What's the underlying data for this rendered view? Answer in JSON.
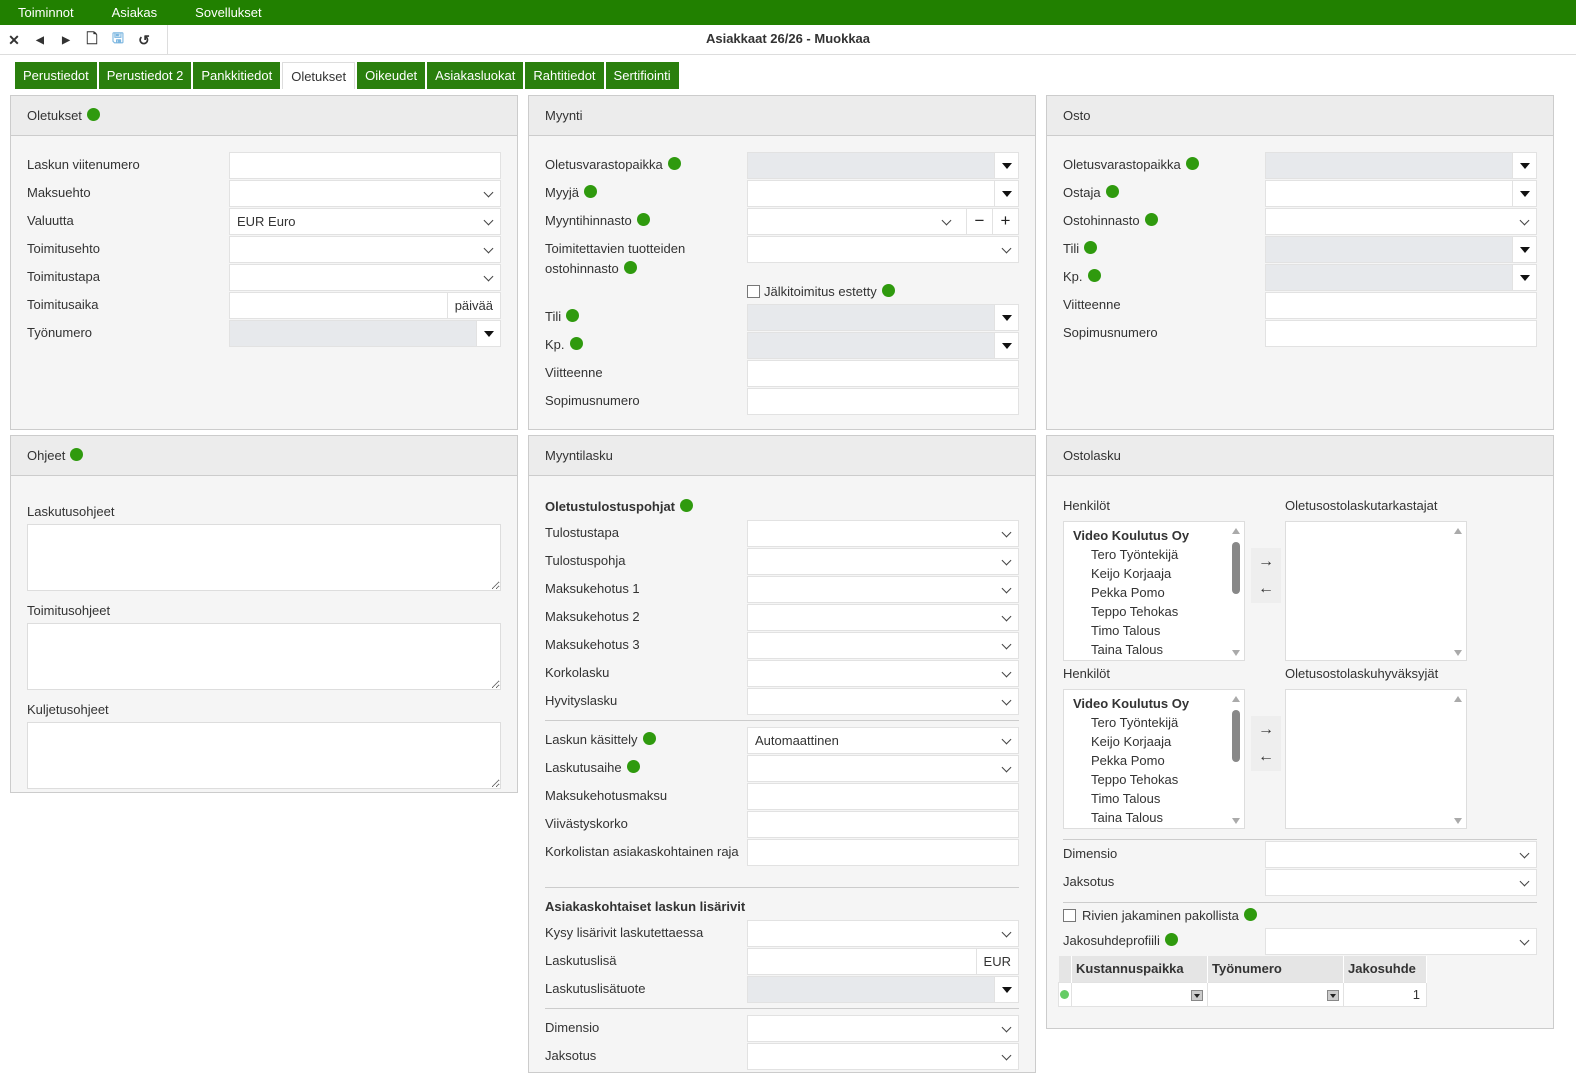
{
  "menu": [
    "Toiminnot",
    "Asiakas",
    "Sovellukset"
  ],
  "window_title": "Asiakkaat 26/26 - Muokkaa",
  "tabs": [
    "Perustiedot",
    "Perustiedot 2",
    "Pankkitiedot",
    "Oletukset",
    "Oikeudet",
    "Asiakasluokat",
    "Rahtitiedot",
    "Sertifiointi"
  ],
  "active_tab": "Oletukset",
  "panels": {
    "oletukset": {
      "title": "Oletukset",
      "info": true,
      "fields": [
        {
          "label": "Laskun viitenumero",
          "type": "text",
          "value": ""
        },
        {
          "label": "Maksuehto",
          "type": "select",
          "value": ""
        },
        {
          "label": "Valuutta",
          "type": "select",
          "value": "EUR Euro"
        },
        {
          "label": "Toimitusehto",
          "type": "select",
          "value": ""
        },
        {
          "label": "Toimitustapa",
          "type": "select",
          "value": ""
        },
        {
          "label": "Toimitusaika",
          "type": "unit",
          "value": "",
          "unit": "päivää"
        },
        {
          "label": "Työnumero",
          "type": "combo-gray",
          "value": ""
        }
      ]
    },
    "myynti": {
      "title": "Myynti",
      "fields": [
        {
          "label": "Oletusvarastopaikka",
          "info": true,
          "type": "combo-gray",
          "value": ""
        },
        {
          "label": "Myyjä",
          "info": true,
          "type": "combo",
          "value": ""
        },
        {
          "label": "Myyntihinnasto",
          "info": true,
          "type": "select-pm",
          "value": ""
        },
        {
          "label": "Toimitettavien tuotteiden ostohinnasto",
          "info": true,
          "type": "select",
          "tall": true,
          "value": ""
        },
        {
          "type": "checkbox",
          "label": "Jälkitoimitus estetty",
          "info": true,
          "checked": false
        },
        {
          "label": "Tili",
          "info": true,
          "type": "combo-gray",
          "value": ""
        },
        {
          "label": "Kp.",
          "info": true,
          "type": "combo-gray",
          "value": ""
        },
        {
          "label": "Viitteenne",
          "type": "text",
          "value": ""
        },
        {
          "label": "Sopimusnumero",
          "type": "text",
          "value": ""
        }
      ]
    },
    "osto": {
      "title": "Osto",
      "fields": [
        {
          "label": "Oletusvarastopaikka",
          "info": true,
          "type": "combo-gray",
          "value": ""
        },
        {
          "label": "Ostaja",
          "info": true,
          "type": "combo",
          "value": ""
        },
        {
          "label": "Ostohinnasto",
          "info": true,
          "type": "select",
          "value": ""
        },
        {
          "label": "Tili",
          "info": true,
          "type": "combo-gray",
          "value": ""
        },
        {
          "label": "Kp.",
          "info": true,
          "type": "combo-gray",
          "value": ""
        },
        {
          "label": "Viitteenne",
          "type": "text",
          "value": ""
        },
        {
          "label": "Sopimusnumero",
          "type": "text",
          "value": ""
        }
      ]
    },
    "ohjeet": {
      "title": "Ohjeet",
      "info": true,
      "textareas": [
        "Laskutusohjeet",
        "Toimitusohjeet",
        "Kuljetusohjeet"
      ]
    },
    "myyntilasku": {
      "title": "Myyntilasku",
      "fields": [
        {
          "type": "heading",
          "label": "Oletustulostuspohjat",
          "info": true
        },
        {
          "label": "Tulostustapa",
          "type": "select",
          "value": ""
        },
        {
          "label": "Tulostuspohja",
          "type": "select",
          "value": ""
        },
        {
          "label": "Maksukehotus 1",
          "type": "select",
          "value": ""
        },
        {
          "label": "Maksukehotus 2",
          "type": "select",
          "value": ""
        },
        {
          "label": "Maksukehotus 3",
          "type": "select",
          "value": ""
        },
        {
          "label": "Korkolasku",
          "type": "select",
          "value": ""
        },
        {
          "label": "Hyvityslasku",
          "type": "select",
          "value": ""
        },
        {
          "type": "divider"
        },
        {
          "label": "Laskun käsittely",
          "info": true,
          "type": "select",
          "value": "Automaattinen"
        },
        {
          "label": "Laskutusaihe",
          "info": true,
          "type": "select",
          "value": ""
        },
        {
          "label": "Maksukehotusmaksu",
          "type": "text",
          "value": ""
        },
        {
          "label": "Viivästyskorko",
          "type": "text",
          "value": ""
        },
        {
          "label": "Korkolistan asiakaskohtainen raja",
          "type": "text",
          "tall": true,
          "value": ""
        },
        {
          "type": "divider"
        },
        {
          "type": "heading",
          "label": "Asiakaskohtaiset laskun lisärivit"
        },
        {
          "label": "Kysy lisärivit laskutettaessa",
          "type": "select",
          "value": ""
        },
        {
          "label": "Laskutuslisä",
          "type": "unit",
          "value": "",
          "unit": "EUR"
        },
        {
          "label": "Laskutuslisätuote",
          "type": "combo-gray",
          "value": ""
        },
        {
          "type": "divider"
        },
        {
          "label": "Dimensio",
          "type": "select",
          "value": ""
        },
        {
          "label": "Jaksotus",
          "type": "select",
          "value": ""
        }
      ]
    },
    "ostolasku": {
      "title": "Ostolasku",
      "lists": [
        {
          "left_label": "Henkilöt",
          "right_label": "Oletusostolaskutarkastajat"
        },
        {
          "left_label": "Henkilöt",
          "right_label": "Oletusostolaskuhyväksyjät"
        }
      ],
      "people": {
        "group": "Video Koulutus Oy",
        "items": [
          "Tero Työntekijä",
          "Keijo Korjaaja",
          "Pekka Pomo",
          "Teppo Tehokas",
          "Timo Talous",
          "Taina Talous"
        ]
      },
      "dimensio": "Dimensio",
      "jaksotus": "Jaksotus",
      "rivien_label": "Rivien jakaminen pakollista",
      "profiili_label": "Jakosuhdeprofiili",
      "grid": {
        "headers": [
          "Kustannuspaikka",
          "Työnumero",
          "Jakosuhde"
        ],
        "row": [
          "",
          "",
          "1"
        ]
      }
    }
  }
}
